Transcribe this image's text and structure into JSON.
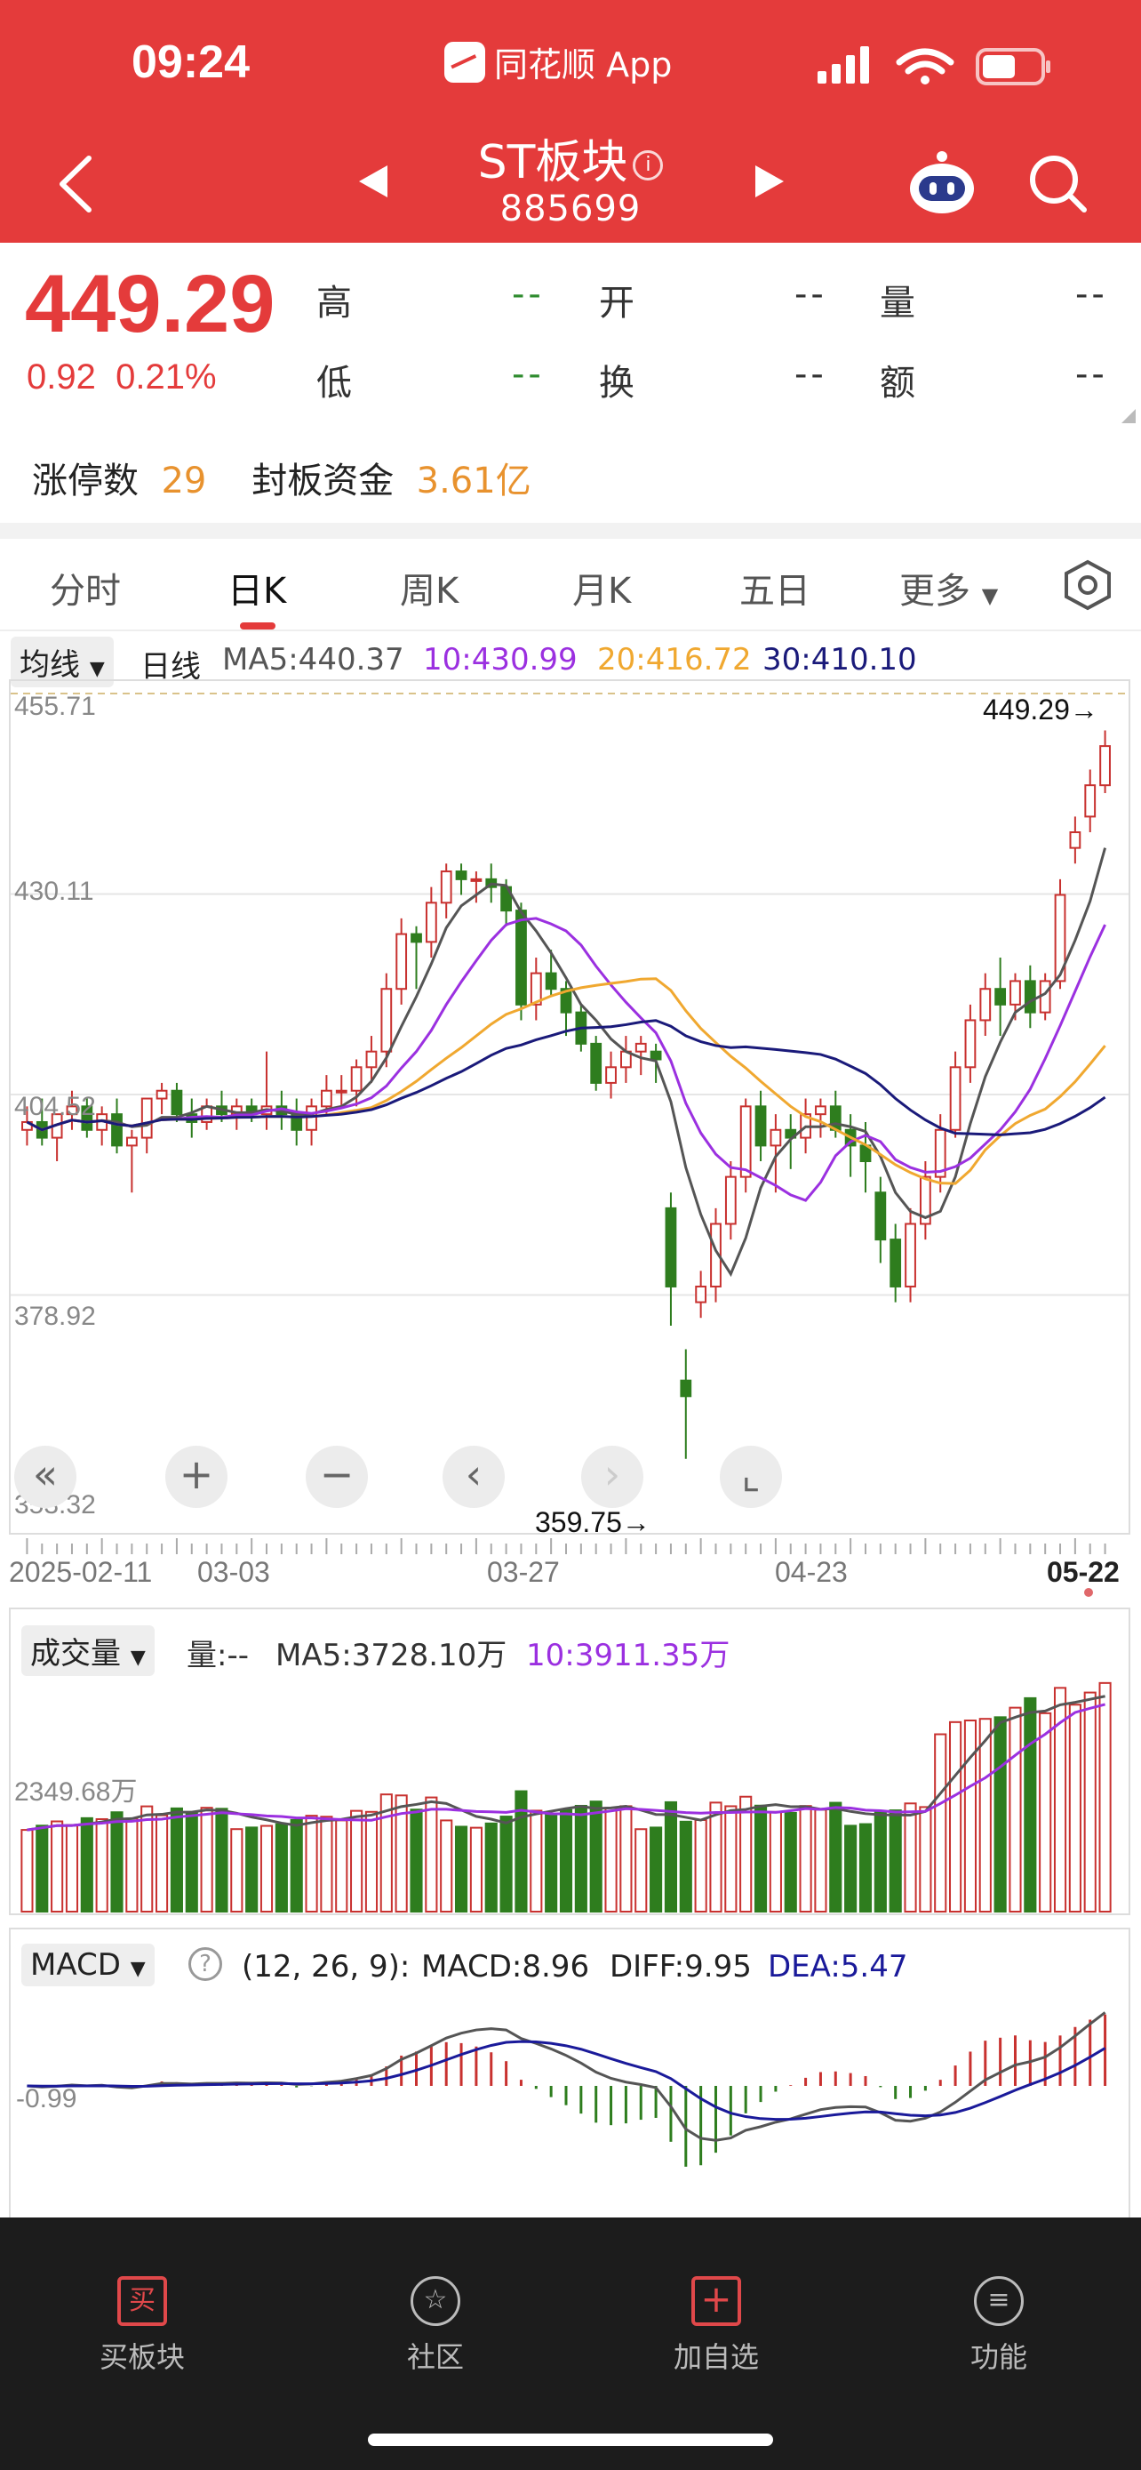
{
  "status": {
    "time": "09:24",
    "app_name": "同花顺 App"
  },
  "nav": {
    "title": "ST板块",
    "code": "885699"
  },
  "quote": {
    "price": "449.29",
    "change": "0.92",
    "change_pct": "0.21%",
    "fields": [
      {
        "label": "高",
        "value": "--"
      },
      {
        "label": "开",
        "value": "--"
      },
      {
        "label": "量",
        "value": "--"
      },
      {
        "label": "低",
        "value": "--"
      },
      {
        "label": "换",
        "value": "--"
      },
      {
        "label": "额",
        "value": "--"
      }
    ],
    "limit_up_label": "涨停数",
    "limit_up_count": "29",
    "seal_funds_label": "封板资金",
    "seal_funds_value": "3.61亿"
  },
  "tabs": [
    "分时",
    "日K",
    "周K",
    "月K",
    "五日",
    "更多"
  ],
  "kline": {
    "legend_selector": "均线",
    "period_label": "日线",
    "ma5": "MA5:440.37",
    "ma10": "10:430.99",
    "ma20": "20:416.72",
    "ma30": "30:410.10",
    "y_labels": [
      "455.71",
      "430.11",
      "404.52",
      "378.92",
      "353.32"
    ],
    "last_price_marker": "449.29→",
    "low_marker": "359.75→",
    "dates": [
      "2025-02-11",
      "03-03",
      "03-27",
      "04-23",
      "05-22"
    ],
    "colors": {
      "up": "#C8312F",
      "down": "#2E7D1E",
      "ma5": "#555555",
      "ma10": "#9B30E0",
      "ma20": "#F0A830",
      "ma30": "#1A1A7A"
    }
  },
  "volume": {
    "selector": "成交量",
    "vol": "量:--",
    "ma5": "MA5:3728.10万",
    "ma10": "10:3911.35万",
    "y_label": "2349.68万"
  },
  "macd": {
    "selector": "MACD",
    "params": "(12, 26, 9):",
    "macd": "MACD:8.96",
    "diff": "DIFF:9.95",
    "dea": "DEA:5.47",
    "y_label": "-0.99"
  },
  "chart_data": {
    "type": "candlestick",
    "title": "",
    "ylim": [
      353.32,
      455.71
    ],
    "x_ticks": [
      "2025-02-11",
      "03-03",
      "03-27",
      "04-23",
      "05-22"
    ],
    "candles": [
      [
        400,
        403,
        398,
        401
      ],
      [
        401,
        404,
        398,
        399
      ],
      [
        399,
        401,
        396,
        402
      ],
      [
        402,
        405,
        400,
        403
      ],
      [
        403,
        404,
        399,
        400
      ],
      [
        400,
        403,
        398,
        402
      ],
      [
        402,
        404,
        397,
        398
      ],
      [
        398,
        400,
        392,
        399
      ],
      [
        399,
        404,
        397,
        404
      ],
      [
        404,
        406,
        402,
        405
      ],
      [
        405,
        406,
        401,
        402
      ],
      [
        402,
        404,
        399,
        401
      ],
      [
        401,
        404,
        400,
        403
      ],
      [
        403,
        405,
        401,
        402
      ],
      [
        402,
        404,
        400,
        403
      ],
      [
        403,
        404,
        401,
        402
      ],
      [
        402,
        410,
        400,
        403
      ],
      [
        403,
        405,
        400,
        402
      ],
      [
        402,
        404,
        398,
        400
      ],
      [
        400,
        404,
        398,
        403
      ],
      [
        403,
        407,
        402,
        405
      ],
      [
        405,
        407,
        403,
        405
      ],
      [
        405,
        409,
        403,
        408
      ],
      [
        408,
        412,
        406,
        410
      ],
      [
        410,
        420,
        408,
        418
      ],
      [
        418,
        427,
        416,
        425
      ],
      [
        425,
        426,
        418,
        424
      ],
      [
        424,
        431,
        422,
        429
      ],
      [
        429,
        434,
        427,
        433
      ],
      [
        433,
        434,
        430,
        432
      ],
      [
        432,
        433,
        429,
        432
      ],
      [
        432,
        434,
        429,
        431
      ],
      [
        431,
        432,
        426,
        428
      ],
      [
        428,
        429,
        414,
        416
      ],
      [
        416,
        422,
        414,
        420
      ],
      [
        420,
        423,
        417,
        418
      ],
      [
        418,
        419,
        412,
        415
      ],
      [
        415,
        416,
        410,
        411
      ],
      [
        411,
        412,
        405,
        406
      ],
      [
        406,
        410,
        404,
        408
      ],
      [
        408,
        412,
        406,
        410
      ],
      [
        410,
        412,
        407,
        411
      ],
      [
        410,
        411,
        406,
        409
      ],
      [
        390,
        392,
        375,
        380
      ],
      [
        368,
        372,
        358,
        366
      ],
      [
        378,
        382,
        376,
        380
      ],
      [
        380,
        390,
        378,
        388
      ],
      [
        388,
        396,
        386,
        394
      ],
      [
        394,
        404,
        392,
        403
      ],
      [
        403,
        405,
        396,
        398
      ],
      [
        398,
        402,
        392,
        400
      ],
      [
        400,
        402,
        395,
        399
      ],
      [
        399,
        404,
        397,
        402
      ],
      [
        402,
        404,
        399,
        403
      ],
      [
        403,
        405,
        399,
        400
      ],
      [
        400,
        402,
        394,
        398
      ],
      [
        398,
        401,
        392,
        396
      ],
      [
        392,
        394,
        383,
        386
      ],
      [
        386,
        388,
        378,
        380
      ],
      [
        380,
        390,
        378,
        388
      ],
      [
        388,
        396,
        386,
        394
      ],
      [
        394,
        402,
        392,
        400
      ],
      [
        400,
        410,
        399,
        408
      ],
      [
        408,
        416,
        406,
        414
      ],
      [
        414,
        420,
        412,
        418
      ],
      [
        418,
        422,
        412,
        416
      ],
      [
        416,
        420,
        414,
        419
      ],
      [
        419,
        421,
        413,
        415
      ],
      [
        415,
        420,
        414,
        419
      ],
      [
        419,
        432,
        418,
        430
      ],
      [
        436,
        440,
        434,
        438
      ],
      [
        440,
        446,
        438,
        444
      ],
      [
        444,
        451,
        443,
        449
      ]
    ]
  }
}
